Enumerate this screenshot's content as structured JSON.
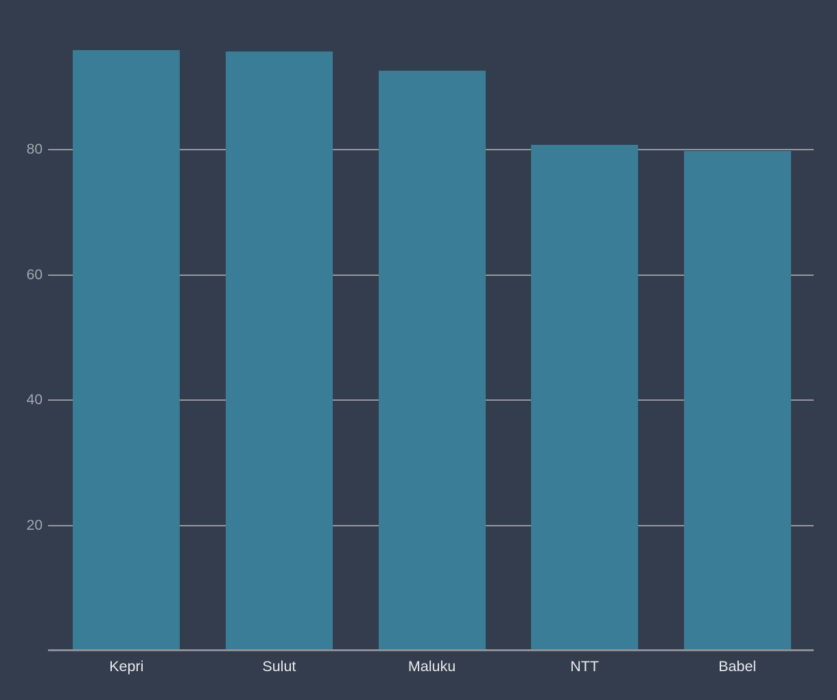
{
  "colors": {
    "background": "#333D4D",
    "bar": "#397D96",
    "gridline": "#97989C",
    "axis_line": "#8E8F93",
    "tick_label": "#A3A7AE",
    "category_label": "#E9EAEC"
  },
  "chart_data": {
    "type": "bar",
    "categories": [
      "Kepri",
      "Sulut",
      "Maluku",
      "NTT",
      "Babel"
    ],
    "values": [
      95.9,
      95.7,
      92.6,
      80.8,
      79.8
    ],
    "title": "",
    "xlabel": "",
    "ylabel": "",
    "ylim": [
      0,
      100
    ],
    "yticks": [
      20,
      40,
      60,
      80
    ],
    "grid": true,
    "legend": false,
    "orientation": "vertical"
  }
}
